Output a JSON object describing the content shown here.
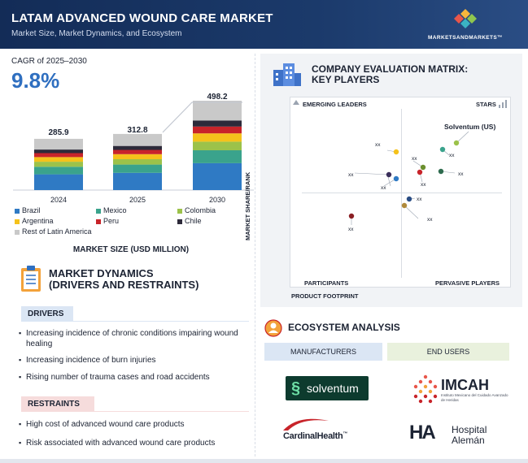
{
  "header": {
    "title": "LATAM ADVANCED WOUND CARE MARKET",
    "subtitle": "Market Size, Market Dynamics, and Ecosystem",
    "brand": "MARKETSANDMARKETS™"
  },
  "cagr": {
    "label": "CAGR of 2025–2030",
    "value": "9.8%"
  },
  "chart_data": {
    "type": "bar",
    "stacked": true,
    "categories": [
      "2024",
      "2025",
      "2030"
    ],
    "totals": [
      "285.9",
      "312.8",
      "498.2"
    ],
    "xlabel": "MARKET SIZE (USD MILLION)",
    "series": [
      {
        "name": "Brazil",
        "color": "#2f7ac4",
        "values": [
          88,
          96,
          150
        ]
      },
      {
        "name": "Mexico",
        "color": "#3aa38c",
        "values": [
          42,
          46,
          72
        ]
      },
      {
        "name": "Colombia",
        "color": "#9cc24a",
        "values": [
          28,
          30,
          48
        ]
      },
      {
        "name": "Argentina",
        "color": "#f5c21b",
        "values": [
          26,
          28,
          46
        ]
      },
      {
        "name": "Peru",
        "color": "#c8242a",
        "values": [
          22,
          24,
          38
        ]
      },
      {
        "name": "Chile",
        "color": "#2d2a3a",
        "values": [
          20,
          22,
          34
        ]
      },
      {
        "name": "Rest of Latin America",
        "color": "#c9c9c9",
        "values": [
          59.9,
          66.8,
          110.2
        ]
      }
    ]
  },
  "dynamics": {
    "title_line1": "MARKET DYNAMICS",
    "title_line2": "(DRIVERS AND RESTRAINTS)",
    "drivers_label": "DRIVERS",
    "drivers": [
      "Increasing incidence of chronic conditions impairing wound healing",
      "Increasing incidence of burn injuries",
      "Rising number of trauma cases and road accidents"
    ],
    "restraints_label": "RESTRAINTS",
    "restraints": [
      "High cost of advanced wound care products",
      "Risk associated with advanced wound care products"
    ]
  },
  "matrix": {
    "title_line1": "COMPANY EVALUATION MATRIX:",
    "title_line2": "KEY PLAYERS",
    "quadrants": {
      "top_left": "EMERGING LEADERS",
      "top_right": "STARS",
      "bottom_left": "PARTICIPANTS",
      "bottom_right": "PERVASIVE PLAYERS"
    },
    "y_axis": "MARKET SHARE/RANK",
    "x_axis": "PRODUCT FOOTPRINT",
    "leader_label": "Solventum (US)",
    "point_label": "xx"
  },
  "ecosystem": {
    "title": "ECOSYSTEM ANALYSIS",
    "columns": [
      "MANUFACTURERS",
      "END USERS"
    ],
    "logos": {
      "solventum": "solventum",
      "imcah": "IMCAH",
      "imcah_sub": "Instituto Mexicano del Cuidado Avanzado de Heridas",
      "cardinal": "CardinalHealth",
      "cardinal_tm": "™",
      "hospital": "Hospital",
      "hospital2": "Alemán",
      "ha": "HA"
    }
  },
  "colors": {
    "accent": "#2f6fc0",
    "header": "#132c57",
    "drivers_tab": "#dbe6f4",
    "restraints_tab": "#f6dcdc"
  }
}
